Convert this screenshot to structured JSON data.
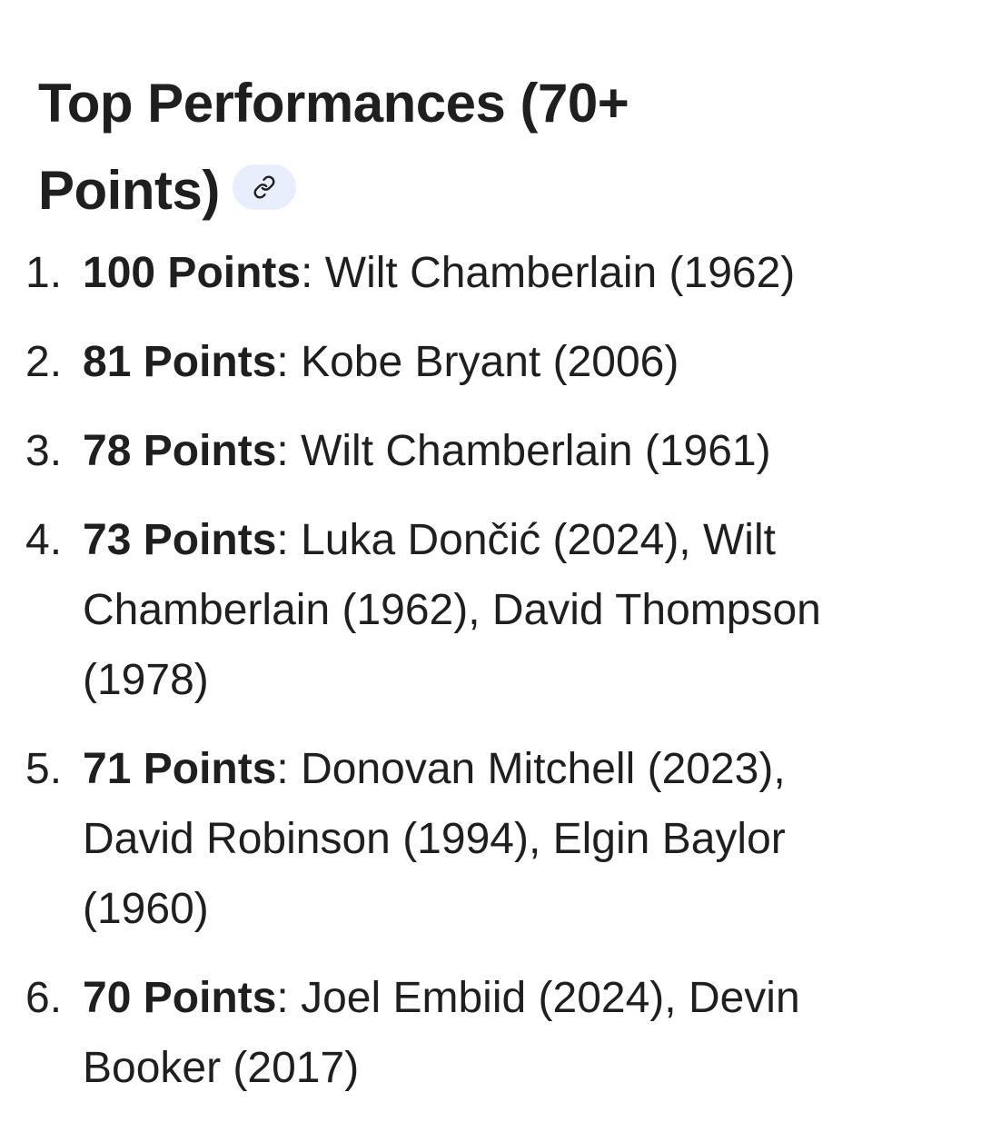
{
  "section": {
    "title": "Top Performances (70+ Points)",
    "link_icon": "link-icon"
  },
  "performances": [
    {
      "number": "1.",
      "points": "100 Points",
      "players": ": Wilt Chamberlain (1962)"
    },
    {
      "number": "2.",
      "points": "81 Points",
      "players": ": Kobe Bryant (2006)"
    },
    {
      "number": "3.",
      "points": "78 Points",
      "players": ": Wilt Chamberlain (1961)"
    },
    {
      "number": "4.",
      "points": "73 Points",
      "players": ": Luka Dončić (2024), Wilt Chamberlain (1962), David Thompson (1978)"
    },
    {
      "number": "5.",
      "points": "71 Points",
      "players": ": Donovan Mitchell (2023), David Robinson (1994), Elgin Baylor (1960)"
    },
    {
      "number": "6.",
      "points": "70 Points",
      "players": ": Joel Embiid (2024), Devin Booker (2017)"
    }
  ],
  "colors": {
    "text": "#1f1f1f",
    "chip_background": "#e8eefc",
    "background": "#ffffff"
  }
}
